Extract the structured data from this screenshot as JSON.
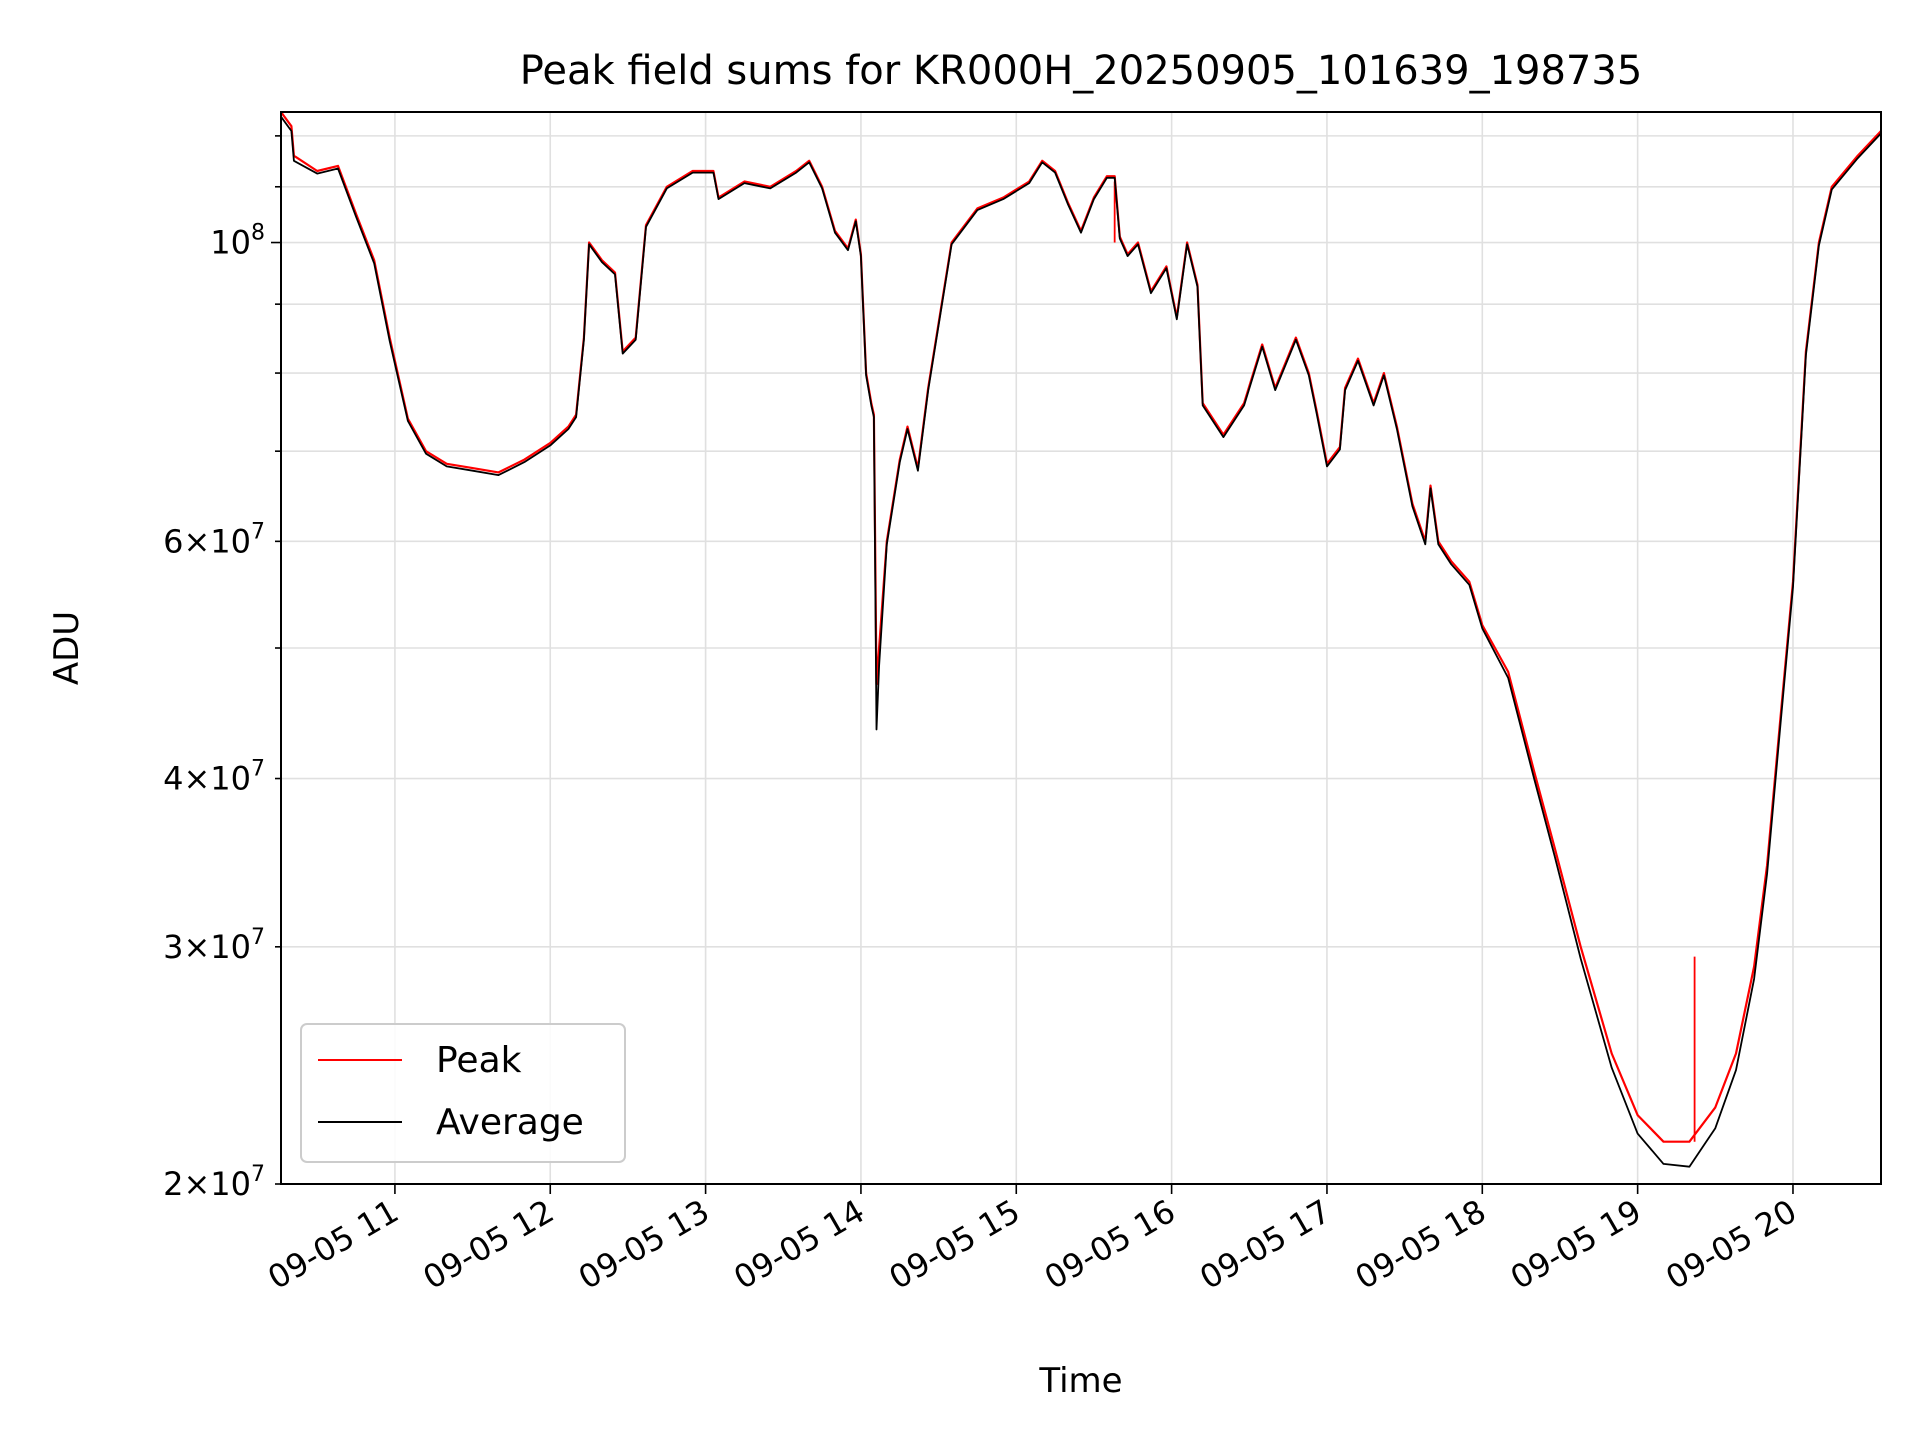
{
  "chart_data": {
    "type": "line",
    "title": "Peak field sums for KR000H_20250905_101639_198735",
    "xlabel": "Time",
    "ylabel": "ADU",
    "yscale": "log",
    "grid": true,
    "legend_position": "lower-left",
    "x_ticks": [
      "09-05 11",
      "09-05 12",
      "09-05 13",
      "09-05 14",
      "09-05 15",
      "09-05 16",
      "09-05 17",
      "09-05 18",
      "09-05 19",
      "09-05 20"
    ],
    "y_ticks_major": [
      {
        "value": 100000000,
        "base": "10",
        "exp": "8"
      }
    ],
    "y_ticks_minor": [
      {
        "value": 20000000,
        "mantissa": "2",
        "base": "10",
        "exp": "7"
      },
      {
        "value": 30000000,
        "mantissa": "3",
        "base": "10",
        "exp": "7"
      },
      {
        "value": 40000000,
        "mantissa": "4",
        "base": "10",
        "exp": "7"
      },
      {
        "value": 60000000,
        "mantissa": "6",
        "base": "10",
        "exp": "7"
      }
    ],
    "xlim": [
      "2025-09-05 10:16",
      "2025-09-05 20:34"
    ],
    "ylim": [
      20000000,
      125000000
    ],
    "series": [
      {
        "name": "Peak",
        "color": "#ff0000",
        "points": [
          [
            "2025-09-05 10:16",
            127000000
          ],
          [
            "2025-09-05 10:20",
            122000000
          ],
          [
            "2025-09-05 10:21",
            116000000
          ],
          [
            "2025-09-05 10:30",
            113000000
          ],
          [
            "2025-09-05 10:38",
            114000000
          ],
          [
            "2025-09-05 10:45",
            105000000
          ],
          [
            "2025-09-05 10:52",
            97000000
          ],
          [
            "2025-09-05 10:58",
            85000000
          ],
          [
            "2025-09-05 11:05",
            74000000
          ],
          [
            "2025-09-05 11:12",
            70000000
          ],
          [
            "2025-09-05 11:20",
            68500000
          ],
          [
            "2025-09-05 11:30",
            68000000
          ],
          [
            "2025-09-05 11:40",
            67500000
          ],
          [
            "2025-09-05 11:50",
            69000000
          ],
          [
            "2025-09-05 12:00",
            71000000
          ],
          [
            "2025-09-05 12:07",
            73000000
          ],
          [
            "2025-09-05 12:10",
            74500000
          ],
          [
            "2025-09-05 12:13",
            85000000
          ],
          [
            "2025-09-05 12:15",
            100000000
          ],
          [
            "2025-09-05 12:20",
            97000000
          ],
          [
            "2025-09-05 12:25",
            95000000
          ],
          [
            "2025-09-05 12:28",
            83000000
          ],
          [
            "2025-09-05 12:33",
            85000000
          ],
          [
            "2025-09-05 12:37",
            103000000
          ],
          [
            "2025-09-05 12:45",
            110000000
          ],
          [
            "2025-09-05 12:55",
            113000000
          ],
          [
            "2025-09-05 13:03",
            113000000
          ],
          [
            "2025-09-05 13:05",
            108000000
          ],
          [
            "2025-09-05 13:15",
            111000000
          ],
          [
            "2025-09-05 13:25",
            110000000
          ],
          [
            "2025-09-05 13:35",
            113000000
          ],
          [
            "2025-09-05 13:40",
            115000000
          ],
          [
            "2025-09-05 13:45",
            110000000
          ],
          [
            "2025-09-05 13:50",
            102000000
          ],
          [
            "2025-09-05 13:55",
            99000000
          ],
          [
            "2025-09-05 13:58",
            104000000
          ],
          [
            "2025-09-05 14:00",
            98000000
          ],
          [
            "2025-09-05 14:02",
            80000000
          ],
          [
            "2025-09-05 14:04",
            76000000
          ],
          [
            "2025-09-05 14:05",
            74500000
          ],
          [
            "2025-09-05 14:06",
            47000000
          ],
          [
            "2025-09-05 14:07",
            50000000
          ],
          [
            "2025-09-05 14:10",
            60000000
          ],
          [
            "2025-09-05 14:15",
            69000000
          ],
          [
            "2025-09-05 14:18",
            73000000
          ],
          [
            "2025-09-05 14:22",
            68000000
          ],
          [
            "2025-09-05 14:26",
            78000000
          ],
          [
            "2025-09-05 14:35",
            100000000
          ],
          [
            "2025-09-05 14:45",
            106000000
          ],
          [
            "2025-09-05 14:55",
            108000000
          ],
          [
            "2025-09-05 15:05",
            111000000
          ],
          [
            "2025-09-05 15:10",
            115000000
          ],
          [
            "2025-09-05 15:15",
            113000000
          ],
          [
            "2025-09-05 15:20",
            107000000
          ],
          [
            "2025-09-05 15:25",
            102000000
          ],
          [
            "2025-09-05 15:30",
            108000000
          ],
          [
            "2025-09-05 15:35",
            112000000
          ],
          [
            "2025-09-05 15:38",
            112000000
          ],
          [
            "2025-09-05 15:40",
            101000000
          ],
          [
            "2025-09-05 15:43",
            98000000
          ],
          [
            "2025-09-05 15:47",
            100000000
          ],
          [
            "2025-09-05 15:52",
            92000000
          ],
          [
            "2025-09-05 15:58",
            96000000
          ],
          [
            "2025-09-05 16:02",
            88000000
          ],
          [
            "2025-09-05 16:06",
            100000000
          ],
          [
            "2025-09-05 16:10",
            93000000
          ],
          [
            "2025-09-05 16:12",
            76000000
          ],
          [
            "2025-09-05 16:20",
            72000000
          ],
          [
            "2025-09-05 16:28",
            76000000
          ],
          [
            "2025-09-05 16:35",
            84000000
          ],
          [
            "2025-09-05 16:40",
            78000000
          ],
          [
            "2025-09-05 16:48",
            85000000
          ],
          [
            "2025-09-05 16:53",
            80000000
          ],
          [
            "2025-09-05 16:56",
            75000000
          ],
          [
            "2025-09-05 17:00",
            68500000
          ],
          [
            "2025-09-05 17:05",
            70500000
          ],
          [
            "2025-09-05 17:07",
            78000000
          ],
          [
            "2025-09-05 17:12",
            82000000
          ],
          [
            "2025-09-05 17:18",
            76000000
          ],
          [
            "2025-09-05 17:22",
            80000000
          ],
          [
            "2025-09-05 17:27",
            73000000
          ],
          [
            "2025-09-05 17:33",
            64000000
          ],
          [
            "2025-09-05 17:38",
            60000000
          ],
          [
            "2025-09-05 17:40",
            66000000
          ],
          [
            "2025-09-05 17:43",
            60000000
          ],
          [
            "2025-09-05 17:48",
            58000000
          ],
          [
            "2025-09-05 17:55",
            56000000
          ],
          [
            "2025-09-05 18:00",
            52000000
          ],
          [
            "2025-09-05 18:10",
            48000000
          ],
          [
            "2025-09-05 18:20",
            40500000
          ],
          [
            "2025-09-05 18:28",
            35500000
          ],
          [
            "2025-09-05 18:38",
            30000000
          ],
          [
            "2025-09-05 18:50",
            25000000
          ],
          [
            "2025-09-05 19:00",
            22500000
          ],
          [
            "2025-09-05 19:10",
            21500000
          ],
          [
            "2025-09-05 19:20",
            21500000
          ],
          [
            "2025-09-05 19:30",
            22800000
          ],
          [
            "2025-09-05 19:38",
            25000000
          ],
          [
            "2025-09-05 19:45",
            29000000
          ],
          [
            "2025-09-05 19:50",
            34500000
          ],
          [
            "2025-09-05 19:55",
            44000000
          ],
          [
            "2025-09-05 20:00",
            56000000
          ],
          [
            "2025-09-05 20:05",
            83000000
          ],
          [
            "2025-09-05 20:10",
            100000000
          ],
          [
            "2025-09-05 20:15",
            110000000
          ],
          [
            "2025-09-05 20:25",
            116000000
          ],
          [
            "2025-09-05 20:34",
            121000000
          ]
        ],
        "spikes": [
          [
            "2025-09-05 15:38",
            111000000
          ],
          [
            "2025-09-05 19:22",
            29500000
          ]
        ]
      },
      {
        "name": "Average",
        "color": "#000000",
        "points": [
          [
            "2025-09-05 10:16",
            124000000
          ],
          [
            "2025-09-05 10:20",
            121000000
          ],
          [
            "2025-09-05 10:21",
            115000000
          ],
          [
            "2025-09-05 10:30",
            112500000
          ],
          [
            "2025-09-05 10:38",
            113500000
          ],
          [
            "2025-09-05 10:45",
            104500000
          ],
          [
            "2025-09-05 10:52",
            96500000
          ],
          [
            "2025-09-05 10:58",
            84500000
          ],
          [
            "2025-09-05 11:05",
            73700000
          ],
          [
            "2025-09-05 11:12",
            69700000
          ],
          [
            "2025-09-05 11:20",
            68200000
          ],
          [
            "2025-09-05 11:30",
            67700000
          ],
          [
            "2025-09-05 11:40",
            67200000
          ],
          [
            "2025-09-05 11:50",
            68700000
          ],
          [
            "2025-09-05 12:00",
            70700000
          ],
          [
            "2025-09-05 12:07",
            72700000
          ],
          [
            "2025-09-05 12:10",
            74200000
          ],
          [
            "2025-09-05 12:13",
            84700000
          ],
          [
            "2025-09-05 12:15",
            99700000
          ],
          [
            "2025-09-05 12:20",
            96700000
          ],
          [
            "2025-09-05 12:25",
            94700000
          ],
          [
            "2025-09-05 12:28",
            82700000
          ],
          [
            "2025-09-05 12:33",
            84700000
          ],
          [
            "2025-09-05 12:37",
            102700000
          ],
          [
            "2025-09-05 12:45",
            109700000
          ],
          [
            "2025-09-05 12:55",
            112700000
          ],
          [
            "2025-09-05 13:03",
            112700000
          ],
          [
            "2025-09-05 13:05",
            107700000
          ],
          [
            "2025-09-05 13:15",
            110700000
          ],
          [
            "2025-09-05 13:25",
            109700000
          ],
          [
            "2025-09-05 13:35",
            112700000
          ],
          [
            "2025-09-05 13:40",
            114700000
          ],
          [
            "2025-09-05 13:45",
            109700000
          ],
          [
            "2025-09-05 13:50",
            101700000
          ],
          [
            "2025-09-05 13:55",
            98700000
          ],
          [
            "2025-09-05 13:58",
            103700000
          ],
          [
            "2025-09-05 14:00",
            97700000
          ],
          [
            "2025-09-05 14:02",
            79700000
          ],
          [
            "2025-09-05 14:04",
            75700000
          ],
          [
            "2025-09-05 14:05",
            74200000
          ],
          [
            "2025-09-05 14:06",
            43500000
          ],
          [
            "2025-09-05 14:07",
            48500000
          ],
          [
            "2025-09-05 14:10",
            59700000
          ],
          [
            "2025-09-05 14:15",
            68700000
          ],
          [
            "2025-09-05 14:18",
            72700000
          ],
          [
            "2025-09-05 14:22",
            67700000
          ],
          [
            "2025-09-05 14:26",
            77700000
          ],
          [
            "2025-09-05 14:35",
            99700000
          ],
          [
            "2025-09-05 14:45",
            105700000
          ],
          [
            "2025-09-05 14:55",
            107700000
          ],
          [
            "2025-09-05 15:05",
            110700000
          ],
          [
            "2025-09-05 15:10",
            114700000
          ],
          [
            "2025-09-05 15:15",
            112700000
          ],
          [
            "2025-09-05 15:20",
            106700000
          ],
          [
            "2025-09-05 15:25",
            101700000
          ],
          [
            "2025-09-05 15:30",
            107700000
          ],
          [
            "2025-09-05 15:35",
            111700000
          ],
          [
            "2025-09-05 15:38",
            111700000
          ],
          [
            "2025-09-05 15:40",
            100700000
          ],
          [
            "2025-09-05 15:43",
            97700000
          ],
          [
            "2025-09-05 15:47",
            99700000
          ],
          [
            "2025-09-05 15:52",
            91700000
          ],
          [
            "2025-09-05 15:58",
            95700000
          ],
          [
            "2025-09-05 16:02",
            87700000
          ],
          [
            "2025-09-05 16:06",
            99700000
          ],
          [
            "2025-09-05 16:10",
            92700000
          ],
          [
            "2025-09-05 16:12",
            75700000
          ],
          [
            "2025-09-05 16:20",
            71700000
          ],
          [
            "2025-09-05 16:28",
            75700000
          ],
          [
            "2025-09-05 16:35",
            83700000
          ],
          [
            "2025-09-05 16:40",
            77700000
          ],
          [
            "2025-09-05 16:48",
            84700000
          ],
          [
            "2025-09-05 16:53",
            79700000
          ],
          [
            "2025-09-05 16:56",
            74700000
          ],
          [
            "2025-09-05 17:00",
            68200000
          ],
          [
            "2025-09-05 17:05",
            70200000
          ],
          [
            "2025-09-05 17:07",
            77700000
          ],
          [
            "2025-09-05 17:12",
            81700000
          ],
          [
            "2025-09-05 17:18",
            75700000
          ],
          [
            "2025-09-05 17:22",
            79700000
          ],
          [
            "2025-09-05 17:27",
            72700000
          ],
          [
            "2025-09-05 17:33",
            63700000
          ],
          [
            "2025-09-05 17:38",
            59700000
          ],
          [
            "2025-09-05 17:40",
            65700000
          ],
          [
            "2025-09-05 17:43",
            59700000
          ],
          [
            "2025-09-05 17:48",
            57700000
          ],
          [
            "2025-09-05 17:55",
            55700000
          ],
          [
            "2025-09-05 18:00",
            51700000
          ],
          [
            "2025-09-05 18:10",
            47500000
          ],
          [
            "2025-09-05 18:20",
            40000000
          ],
          [
            "2025-09-05 18:28",
            35000000
          ],
          [
            "2025-09-05 18:38",
            29400000
          ],
          [
            "2025-09-05 18:50",
            24400000
          ],
          [
            "2025-09-05 19:00",
            21800000
          ],
          [
            "2025-09-05 19:10",
            20700000
          ],
          [
            "2025-09-05 19:20",
            20600000
          ],
          [
            "2025-09-05 19:30",
            22000000
          ],
          [
            "2025-09-05 19:38",
            24300000
          ],
          [
            "2025-09-05 19:45",
            28400000
          ],
          [
            "2025-09-05 19:50",
            34000000
          ],
          [
            "2025-09-05 19:55",
            43500000
          ],
          [
            "2025-09-05 20:00",
            55500000
          ],
          [
            "2025-09-05 20:05",
            82500000
          ],
          [
            "2025-09-05 20:10",
            99500000
          ],
          [
            "2025-09-05 20:15",
            109500000
          ],
          [
            "2025-09-05 20:25",
            115500000
          ],
          [
            "2025-09-05 20:34",
            120500000
          ]
        ]
      }
    ]
  }
}
